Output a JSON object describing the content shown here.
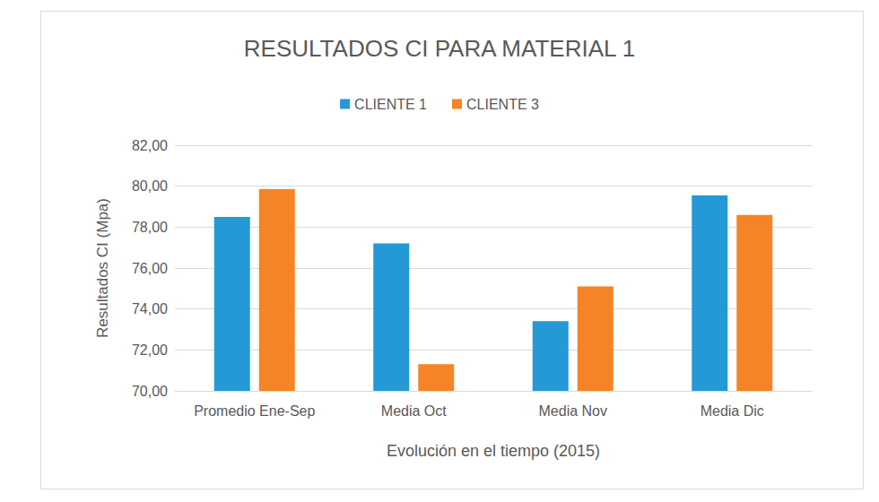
{
  "chart_data": {
    "type": "bar",
    "title": "RESULTADOS CI PARA MATERIAL 1",
    "x_label": "Evolución en el tiempo (2015)",
    "y_label": "Resultados CI (Mpa)",
    "categories": [
      "Promedio Ene-Sep",
      "Media Oct",
      "Media Nov",
      "Media Dic"
    ],
    "series": [
      {
        "name": "CLIENTE 1",
        "color": "#2499d6",
        "values": [
          78.5,
          77.2,
          73.4,
          79.55
        ]
      },
      {
        "name": "CLIENTE 3",
        "color": "#f58426",
        "values": [
          79.85,
          71.3,
          75.1,
          78.6
        ]
      }
    ],
    "ylim": [
      70,
      82
    ],
    "yticks": [
      {
        "value": 70,
        "label": "70,00"
      },
      {
        "value": 72,
        "label": "72,00"
      },
      {
        "value": 74,
        "label": "74,00"
      },
      {
        "value": 76,
        "label": "76,00"
      },
      {
        "value": 78,
        "label": "78,00"
      },
      {
        "value": 80,
        "label": "80,00"
      },
      {
        "value": 82,
        "label": "82,00"
      }
    ],
    "grid": true,
    "legend": "top"
  }
}
